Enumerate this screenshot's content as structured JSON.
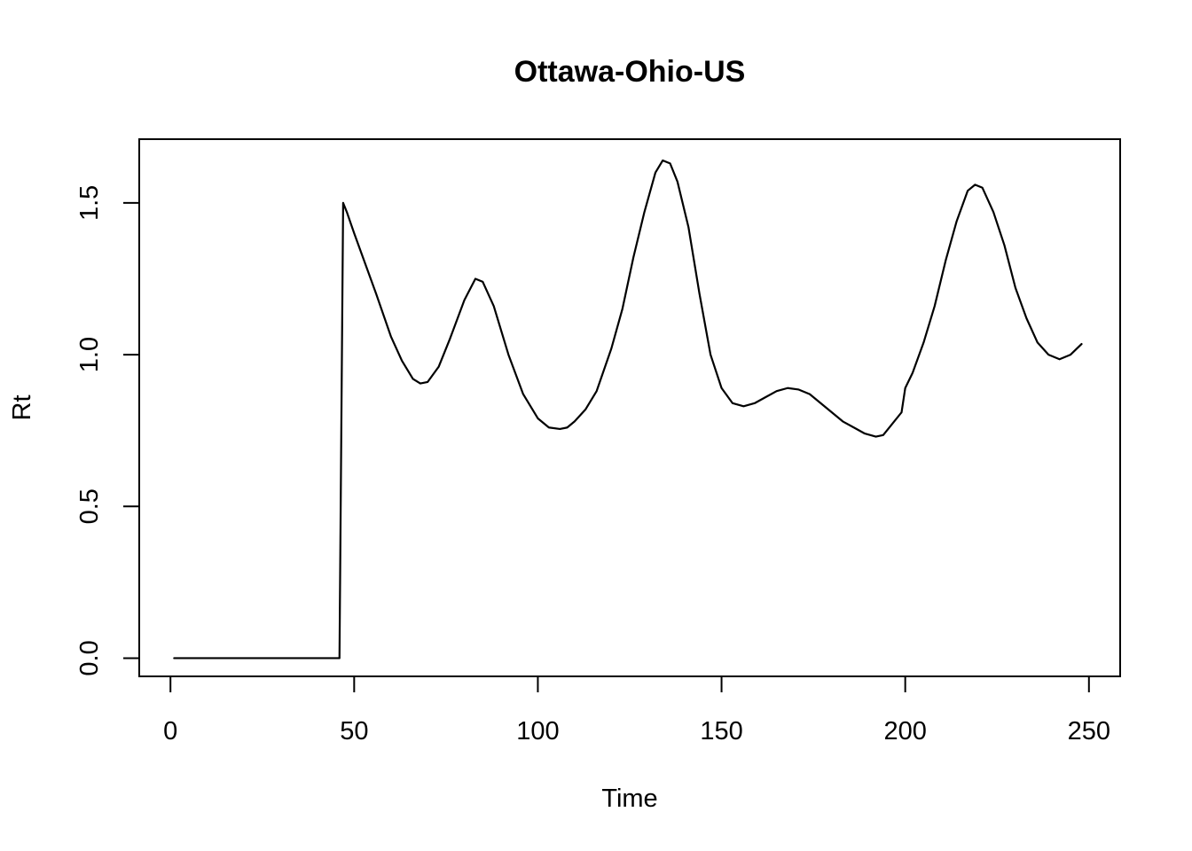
{
  "chart_data": {
    "type": "line",
    "title": "Ottawa-Ohio-US",
    "xlabel": "Time",
    "ylabel": "Rt",
    "xlim": [
      -8.5,
      258.5
    ],
    "ylim": [
      -0.06,
      1.71
    ],
    "x_ticks": [
      0,
      50,
      100,
      150,
      200,
      250
    ],
    "x_tick_labels": [
      "0",
      "50",
      "100",
      "150",
      "200",
      "250"
    ],
    "y_ticks": [
      0.0,
      0.5,
      1.0,
      1.5
    ],
    "y_tick_labels": [
      "0.0",
      "0.5",
      "1.0",
      "1.5"
    ],
    "grid": false,
    "legend": "none",
    "line_color": "#000000",
    "series": [
      {
        "x": [
          1,
          10,
          20,
          30,
          40,
          46,
          47,
          48,
          50,
          53,
          56,
          60,
          63,
          66,
          68,
          70,
          73,
          76,
          80,
          83,
          85,
          88,
          92,
          96,
          100,
          103,
          106,
          108,
          110,
          113,
          116,
          120,
          123,
          126,
          129,
          132,
          134,
          136,
          138,
          141,
          144,
          147,
          150,
          153,
          156,
          159,
          162,
          165,
          168,
          171,
          174,
          177,
          180,
          183,
          186,
          189,
          192,
          194,
          196,
          199,
          200,
          202,
          205,
          208,
          211,
          214,
          217,
          219,
          221,
          224,
          227,
          230,
          233,
          236,
          239,
          242,
          245,
          248
        ],
        "y": [
          0.0,
          0.0,
          0.0,
          0.0,
          0.0,
          0.0,
          1.5,
          1.47,
          1.4,
          1.3,
          1.2,
          1.06,
          0.98,
          0.92,
          0.905,
          0.91,
          0.96,
          1.05,
          1.18,
          1.25,
          1.24,
          1.16,
          1.0,
          0.87,
          0.79,
          0.76,
          0.755,
          0.76,
          0.78,
          0.82,
          0.88,
          1.02,
          1.15,
          1.32,
          1.47,
          1.6,
          1.64,
          1.63,
          1.57,
          1.42,
          1.2,
          1.0,
          0.89,
          0.84,
          0.83,
          0.84,
          0.86,
          0.88,
          0.89,
          0.885,
          0.87,
          0.84,
          0.81,
          0.78,
          0.76,
          0.74,
          0.73,
          0.735,
          0.765,
          0.81,
          0.89,
          0.94,
          1.04,
          1.16,
          1.31,
          1.44,
          1.54,
          1.56,
          1.55,
          1.47,
          1.36,
          1.22,
          1.12,
          1.04,
          1.0,
          0.985,
          1.0,
          1.035
        ]
      }
    ]
  }
}
